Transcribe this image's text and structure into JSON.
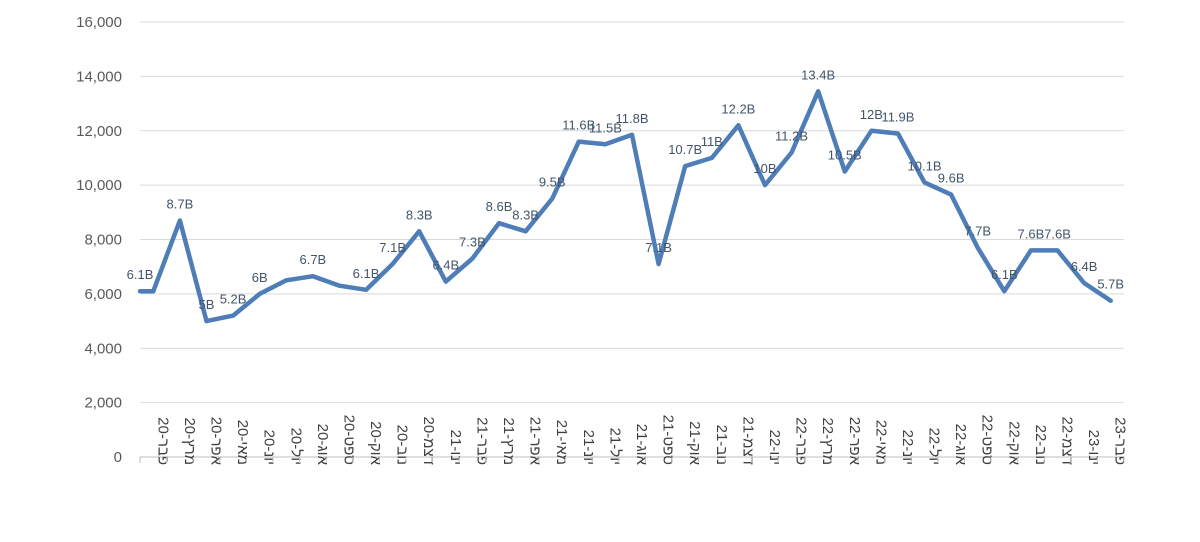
{
  "chart_data": {
    "type": "line",
    "title": "",
    "xlabel": "",
    "ylabel": "",
    "ylim": [
      0,
      16000
    ],
    "y_ticks": [
      "0",
      "2,000",
      "4,000",
      "6,000",
      "8,000",
      "10,000",
      "12,000",
      "14,000",
      "16,000"
    ],
    "grid": true,
    "legend": "none",
    "categories": [
      "פבר-20",
      "מרץ-20",
      "אפר-20",
      "מאי-20",
      "יונ-20",
      "יול-20",
      "אוג-20",
      "ספט-20",
      "אוק-20",
      "נוב-20",
      "דצמ-20",
      "ינו-21",
      "פבר-21",
      "מרץ-21",
      "אפר-21",
      "מאי-21",
      "יונ-21",
      "יול-21",
      "אוג-21",
      "ספט-21",
      "אוק-21",
      "נוב-21",
      "דצמ-21",
      "ינו-22",
      "פבר-22",
      "מרץ-22",
      "אפר-22",
      "מאי-22",
      "יונ-22",
      "יול-22",
      "אוג-22",
      "ספט-22",
      "אוק-22",
      "נוב-22",
      "דצמ-22",
      "ינו-23",
      "פבר-23"
    ],
    "series": [
      {
        "name": "",
        "color": "#4f7db8",
        "x": [
          0,
          0.5,
          1.5,
          2.5,
          3.5,
          4.5,
          5.5,
          6.5,
          7.5,
          8.5,
          9.5,
          10.5,
          11.5,
          12.5,
          13.5,
          14.5,
          15.5,
          16.5,
          17.5,
          18.5,
          19.5,
          20.5,
          21.5,
          22.5,
          23.5,
          24.5,
          25.5,
          26.5,
          27.5,
          28.5,
          29.5,
          30.5,
          31.5,
          32.5,
          33.5,
          34.5,
          35.5,
          36.5
        ],
        "values": [
          6100,
          6100,
          8700,
          5000,
          5200,
          6000,
          6500,
          6650,
          6300,
          6150,
          7100,
          8300,
          6450,
          7300,
          8600,
          8300,
          9500,
          11600,
          11500,
          11850,
          7100,
          10700,
          11000,
          12200,
          10000,
          11200,
          13450,
          10500,
          12000,
          11900,
          10100,
          9650,
          7700,
          6100,
          7600,
          7600,
          6400,
          5750
        ],
        "labels": [
          "6.1B",
          "",
          "8.7B",
          "5B",
          "5.2B",
          "6B",
          "",
          "6.7B",
          "",
          "6.1B",
          "7.1B",
          "8.3B",
          "6.4B",
          "7.3B",
          "8.6B",
          "8.3B",
          "9.5B",
          "11.6B",
          "11.5B",
          "11.8B",
          "7.1B",
          "10.7B",
          "11B",
          "12.2B",
          "10B",
          "11.2B",
          "13.4B",
          "10.5B",
          "12B",
          "11.9B",
          "10.1B",
          "9.6B",
          "7.7B",
          "6.1B",
          "7.6B",
          "7.6B",
          "6.4B",
          "5.7B"
        ]
      }
    ]
  }
}
